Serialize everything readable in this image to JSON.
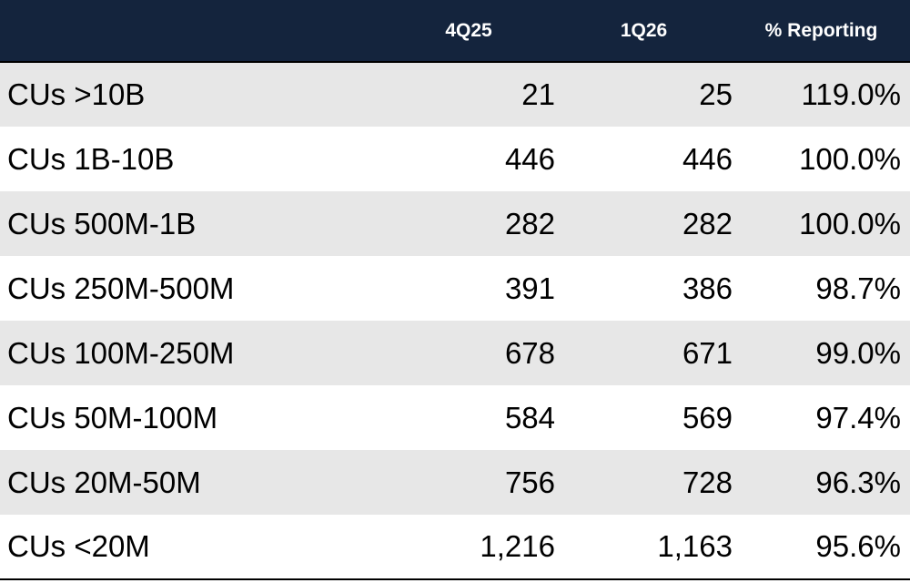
{
  "table": {
    "header": {
      "label_col": "",
      "col_q1": "4Q25",
      "col_q2": "1Q26",
      "col_pct": "% Reporting"
    },
    "rows": [
      {
        "label": "CUs >10B",
        "q1": "21",
        "q2": "25",
        "pct": "119.0%"
      },
      {
        "label": "CUs 1B-10B",
        "q1": "446",
        "q2": "446",
        "pct": "100.0%"
      },
      {
        "label": "CUs 500M-1B",
        "q1": "282",
        "q2": "282",
        "pct": "100.0%"
      },
      {
        "label": "CUs 250M-500M",
        "q1": "391",
        "q2": "386",
        "pct": "98.7%"
      },
      {
        "label": "CUs 100M-250M",
        "q1": "678",
        "q2": "671",
        "pct": "99.0%"
      },
      {
        "label": "CUs 50M-100M",
        "q1": "584",
        "q2": "569",
        "pct": "97.4%"
      },
      {
        "label": "CUs 20M-50M",
        "q1": "756",
        "q2": "728",
        "pct": "96.3%"
      },
      {
        "label": "CUs <20M",
        "q1": "1,216",
        "q2": "1,163",
        "pct": "95.6%"
      }
    ]
  },
  "colors": {
    "header_bg": "#14243d",
    "header_text": "#ffffff",
    "row_shade": "#e7e7e7",
    "row_plain": "#ffffff",
    "rule": "#000000"
  }
}
